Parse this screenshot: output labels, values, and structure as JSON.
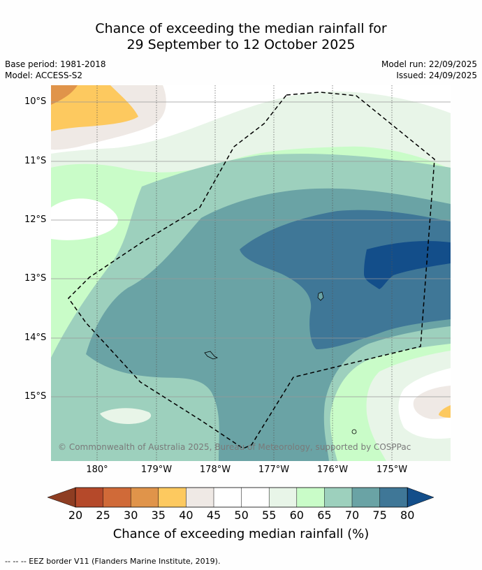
{
  "title": {
    "line1": "Chance of exceeding the median rainfall for",
    "line2": "29 September to 12 October 2025"
  },
  "meta": {
    "base_period": "Base period: 1981-2018",
    "model": "Model: ACCESS-S2",
    "model_run": "Model run: 22/09/2025",
    "issued": "Issued: 24/09/2025"
  },
  "map": {
    "lat_labels": [
      "10°S",
      "11°S",
      "12°S",
      "13°S",
      "14°S",
      "15°S"
    ],
    "lon_labels": [
      "180°",
      "179°W",
      "178°W",
      "177°W",
      "176°W",
      "175°W"
    ],
    "copyright": "© Commonwealth of Australia 2025, Bureau of Meteorology, supported by COSPPac"
  },
  "colorbar": {
    "label": "Chance of exceeding median rainfall (%)",
    "ticks": [
      "20",
      "25",
      "30",
      "35",
      "40",
      "45",
      "50",
      "55",
      "60",
      "65",
      "70",
      "75",
      "80"
    ],
    "colors": {
      "c20": "#8e3d22",
      "c25": "#b5492a",
      "c30": "#d06a38",
      "c35": "#e0944a",
      "c40": "#fdc95f",
      "c45": "#efe9e5",
      "c50": "#ffffff",
      "c55": "#ffffff",
      "c60": "#e8f5e8",
      "c65": "#c9fcc8",
      "c70": "#9dd0bd",
      "c75": "#6aa3a5",
      "c80": "#3f7797",
      "c85": "#134e8a"
    }
  },
  "footer": {
    "legend_text": "--  --  -- EEZ border V11 (Flanders Marine Institute, 2019)."
  }
}
